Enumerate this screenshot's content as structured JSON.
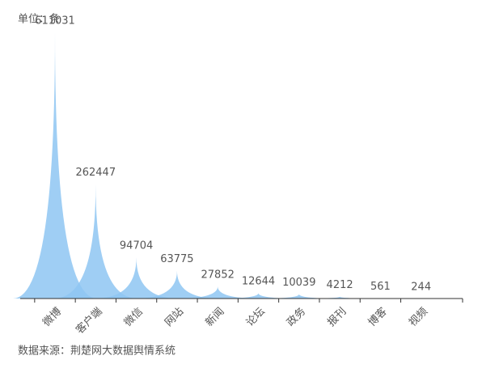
{
  "chart_data": {
    "type": "spike",
    "unit_label": "单位：条",
    "source": "数据来源：荆楚网大数据舆情系统",
    "categories": [
      "微博",
      "客户端",
      "微信",
      "网站",
      "新闻",
      "论坛",
      "政务",
      "报刊",
      "博客",
      "视频"
    ],
    "values": [
      611031,
      262447,
      94704,
      63775,
      27852,
      12644,
      10039,
      4212,
      561,
      244
    ],
    "color": "#8ec5f2"
  }
}
